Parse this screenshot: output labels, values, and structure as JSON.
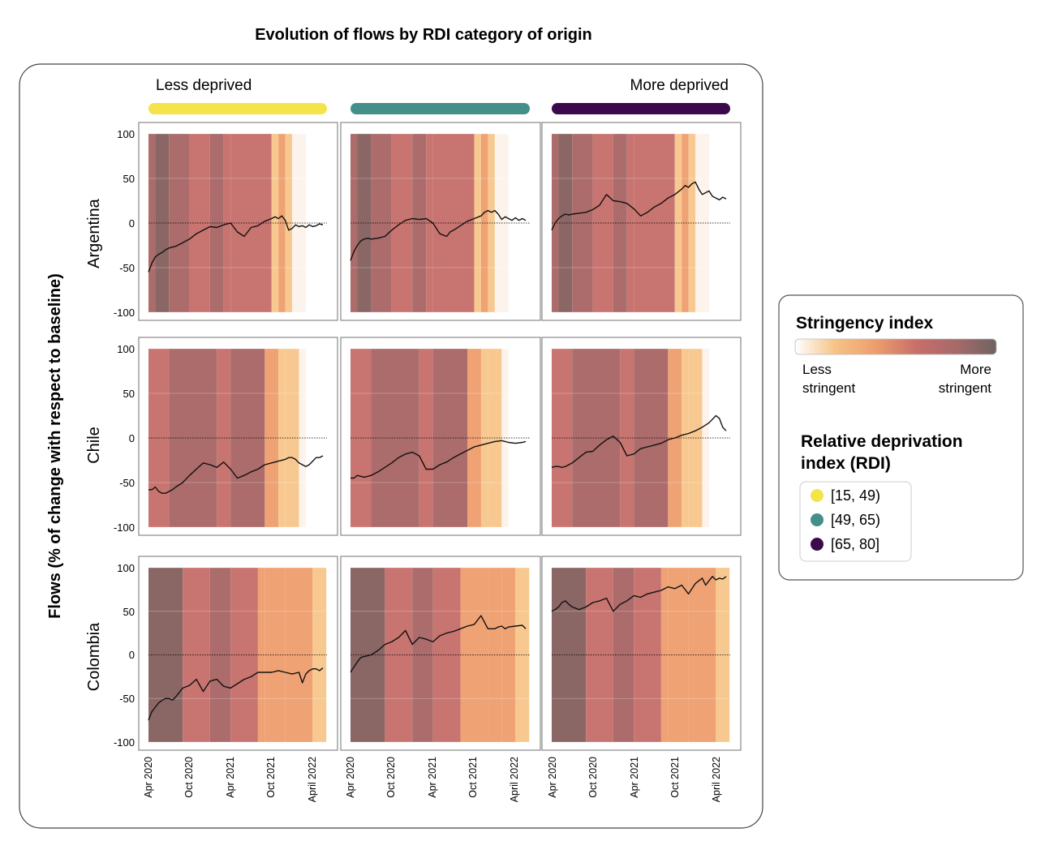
{
  "title": "Evolution of flows by RDI category of origin",
  "y_axis_label": "Flows (% of change with respect to baseline)",
  "column_headers": {
    "left": "Less deprived",
    "right": "More deprived"
  },
  "column_colors": [
    "#f5e34a",
    "#458f8b",
    "#3a0a4c"
  ],
  "row_labels": [
    "Argentina",
    "Chile",
    "Colombia"
  ],
  "y_ticks": [
    "100",
    "50",
    "0",
    "-50",
    "-100"
  ],
  "x_ticks": [
    "Apr 2020",
    "Oct 2020",
    "Apr 2021",
    "Oct 2021",
    "April 2022"
  ],
  "legend": {
    "stringency_title": "Stringency index",
    "stringency_low": [
      "Less",
      "stringent"
    ],
    "stringency_high": [
      "More",
      "stringent"
    ],
    "gradient_colors": [
      "#ffffff",
      "#f6c387",
      "#ed9e6d",
      "#c86f6a",
      "#a66a69",
      "#6e6462"
    ],
    "rdi_title_lines": [
      "Relative deprivation",
      "index (RDI)"
    ],
    "rdi_items": [
      {
        "label": "[15, 49)",
        "color": "#f5e34a"
      },
      {
        "label": "[49, 65)",
        "color": "#458f8b"
      },
      {
        "label": "[65, 80]",
        "color": "#3a0a4c"
      }
    ]
  },
  "chart_data": {
    "type": "line",
    "x_unit": "months since Apr 2020",
    "ylim": [
      -100,
      100
    ],
    "baseline": 0,
    "panels": [
      {
        "country": "Argentina",
        "rdi": "[15, 49)",
        "bands": [
          [
            0,
            1,
            4
          ],
          [
            1,
            3,
            5
          ],
          [
            3,
            6,
            4
          ],
          [
            6,
            9,
            3
          ],
          [
            9,
            11,
            4
          ],
          [
            11,
            12,
            3
          ],
          [
            12,
            18,
            3
          ],
          [
            18,
            19,
            1
          ],
          [
            19,
            20,
            2
          ],
          [
            20,
            21,
            1
          ],
          [
            21,
            23,
            0
          ]
        ],
        "x": [
          0,
          0.5,
          1,
          1.5,
          2,
          2.5,
          3,
          3.5,
          4,
          5,
          6,
          7,
          8,
          9,
          10,
          11,
          12,
          12.5,
          13,
          14,
          15,
          16,
          17,
          18,
          18.5,
          19,
          19.5,
          20,
          20.5,
          21,
          21.5,
          22,
          22.5,
          23,
          23.5,
          24,
          24.5,
          25,
          25.5
        ],
        "y": [
          -55,
          -45,
          -38,
          -35,
          -33,
          -30,
          -28,
          -27,
          -26,
          -22,
          -18,
          -12,
          -8,
          -4,
          -5,
          -2,
          0,
          -5,
          -10,
          -15,
          -5,
          -3,
          2,
          5,
          7,
          5,
          8,
          3,
          -8,
          -6,
          -2,
          -4,
          -3,
          -5,
          -2,
          -4,
          -3,
          -1,
          -2
        ]
      },
      {
        "country": "Argentina",
        "rdi": "[49, 65)",
        "bands": [
          [
            0,
            1,
            4
          ],
          [
            1,
            3,
            5
          ],
          [
            3,
            6,
            4
          ],
          [
            6,
            9,
            3
          ],
          [
            9,
            11,
            4
          ],
          [
            11,
            12,
            3
          ],
          [
            12,
            18,
            3
          ],
          [
            18,
            19,
            1
          ],
          [
            19,
            20,
            2
          ],
          [
            20,
            21,
            1
          ],
          [
            21,
            23,
            0
          ]
        ],
        "x": [
          0,
          0.5,
          1,
          1.5,
          2,
          2.5,
          3,
          4,
          5,
          6,
          7,
          8,
          9,
          10,
          11,
          12,
          13,
          14,
          14.5,
          15,
          16,
          17,
          18,
          19,
          19.5,
          20,
          20.5,
          21,
          21.5,
          22,
          22.5,
          23,
          23.5,
          24,
          24.5,
          25,
          25.5
        ],
        "y": [
          -42,
          -32,
          -25,
          -20,
          -18,
          -17,
          -18,
          -17,
          -15,
          -8,
          -2,
          3,
          5,
          4,
          5,
          0,
          -12,
          -15,
          -10,
          -8,
          -3,
          2,
          5,
          8,
          12,
          14,
          12,
          14,
          10,
          4,
          7,
          5,
          3,
          6,
          3,
          5,
          3
        ]
      },
      {
        "country": "Argentina",
        "rdi": "[65, 80]",
        "bands": [
          [
            0,
            1,
            4
          ],
          [
            1,
            3,
            5
          ],
          [
            3,
            6,
            4
          ],
          [
            6,
            9,
            3
          ],
          [
            9,
            11,
            4
          ],
          [
            11,
            12,
            3
          ],
          [
            12,
            18,
            3
          ],
          [
            18,
            19,
            1
          ],
          [
            19,
            20,
            2
          ],
          [
            20,
            21,
            1
          ],
          [
            21,
            23,
            0
          ]
        ],
        "x": [
          0,
          0.5,
          1,
          1.5,
          2,
          2.5,
          3,
          4,
          5,
          6,
          7,
          8,
          9,
          10,
          11,
          12,
          13,
          14,
          15,
          16,
          17,
          18,
          19,
          19.5,
          20,
          20.5,
          21,
          21.5,
          22,
          22.5,
          23,
          23.5,
          24,
          24.5,
          25,
          25.5
        ],
        "y": [
          -8,
          0,
          5,
          8,
          10,
          9,
          10,
          11,
          12,
          15,
          20,
          32,
          25,
          24,
          22,
          16,
          8,
          12,
          18,
          22,
          28,
          32,
          38,
          42,
          40,
          44,
          46,
          38,
          32,
          34,
          36,
          30,
          28,
          26,
          29,
          27
        ]
      },
      {
        "country": "Chile",
        "rdi": "[15, 49)",
        "bands": [
          [
            0,
            3,
            3
          ],
          [
            3,
            10,
            4
          ],
          [
            10,
            12,
            3
          ],
          [
            12,
            17,
            4
          ],
          [
            17,
            19,
            2
          ],
          [
            19,
            20,
            1
          ],
          [
            20,
            22,
            1
          ],
          [
            22,
            23,
            0
          ]
        ],
        "x": [
          0,
          0.5,
          1,
          1.5,
          2,
          2.5,
          3,
          3.5,
          4,
          5,
          6,
          7,
          8,
          9,
          10,
          11,
          12,
          13,
          14,
          14.5,
          15,
          16,
          17,
          18,
          19,
          20,
          20.5,
          21,
          21.5,
          22,
          22.5,
          23,
          23.5,
          24,
          24.5,
          25,
          25.5
        ],
        "y": [
          -58,
          -58,
          -55,
          -60,
          -62,
          -62,
          -60,
          -58,
          -55,
          -50,
          -42,
          -35,
          -28,
          -30,
          -33,
          -27,
          -35,
          -45,
          -42,
          -40,
          -38,
          -35,
          -30,
          -28,
          -26,
          -24,
          -22,
          -22,
          -24,
          -28,
          -30,
          -32,
          -30,
          -26,
          -22,
          -22,
          -20
        ]
      },
      {
        "country": "Chile",
        "rdi": "[49, 65)",
        "bands": [
          [
            0,
            3,
            3
          ],
          [
            3,
            10,
            4
          ],
          [
            10,
            12,
            3
          ],
          [
            12,
            17,
            4
          ],
          [
            17,
            19,
            2
          ],
          [
            19,
            20,
            1
          ],
          [
            20,
            22,
            1
          ],
          [
            22,
            23,
            0
          ]
        ],
        "x": [
          0,
          0.5,
          1,
          1.5,
          2,
          3,
          4,
          5,
          6,
          7,
          8,
          9,
          10,
          11,
          12,
          13,
          14,
          15,
          16,
          17,
          18,
          19,
          20,
          21,
          22,
          23,
          24,
          25,
          25.5
        ],
        "y": [
          -45,
          -45,
          -42,
          -43,
          -44,
          -42,
          -38,
          -33,
          -28,
          -22,
          -18,
          -16,
          -20,
          -35,
          -35,
          -30,
          -27,
          -22,
          -18,
          -14,
          -10,
          -8,
          -6,
          -4,
          -3,
          -5,
          -6,
          -5,
          -4
        ]
      },
      {
        "country": "Chile",
        "rdi": "[65, 80]",
        "bands": [
          [
            0,
            3,
            3
          ],
          [
            3,
            10,
            4
          ],
          [
            10,
            12,
            3
          ],
          [
            12,
            17,
            4
          ],
          [
            17,
            19,
            2
          ],
          [
            19,
            20,
            1
          ],
          [
            20,
            22,
            1
          ],
          [
            22,
            23,
            0
          ]
        ],
        "x": [
          0,
          0.5,
          1,
          1.5,
          2,
          3,
          4,
          5,
          6,
          7,
          8,
          9,
          10,
          11,
          12,
          13,
          14,
          15,
          16,
          17,
          18,
          19,
          20,
          21,
          22,
          23,
          24,
          24.5,
          25,
          25.5
        ],
        "y": [
          -33,
          -32,
          -32,
          -33,
          -32,
          -28,
          -22,
          -16,
          -15,
          -8,
          -2,
          2,
          -5,
          -20,
          -18,
          -12,
          -10,
          -8,
          -6,
          -2,
          0,
          3,
          5,
          8,
          12,
          17,
          25,
          22,
          12,
          8
        ]
      },
      {
        "country": "Colombia",
        "rdi": "[15, 49)",
        "bands": [
          [
            0,
            5,
            5
          ],
          [
            5,
            9,
            3
          ],
          [
            9,
            12,
            4
          ],
          [
            12,
            16,
            3
          ],
          [
            16,
            17,
            2
          ],
          [
            17,
            20,
            2
          ],
          [
            20,
            22,
            2
          ],
          [
            22,
            24,
            2
          ],
          [
            24,
            26,
            1
          ]
        ],
        "x": [
          0,
          0.5,
          1,
          1.5,
          2,
          2.5,
          3,
          3.5,
          4,
          5,
          6,
          7,
          8,
          9,
          10,
          11,
          12,
          13,
          14,
          15,
          16,
          17,
          18,
          19,
          20,
          21,
          22,
          22.5,
          23,
          23.5,
          24,
          24.5,
          25,
          25.5
        ],
        "y": [
          -75,
          -65,
          -60,
          -55,
          -52,
          -50,
          -50,
          -52,
          -48,
          -38,
          -35,
          -28,
          -42,
          -30,
          -28,
          -36,
          -38,
          -33,
          -28,
          -25,
          -20,
          -20,
          -20,
          -18,
          -20,
          -22,
          -20,
          -32,
          -22,
          -18,
          -16,
          -16,
          -18,
          -15
        ]
      },
      {
        "country": "Colombia",
        "rdi": "[49, 65)",
        "bands": [
          [
            0,
            5,
            5
          ],
          [
            5,
            9,
            3
          ],
          [
            9,
            12,
            4
          ],
          [
            12,
            16,
            3
          ],
          [
            16,
            17,
            2
          ],
          [
            17,
            20,
            2
          ],
          [
            20,
            22,
            2
          ],
          [
            22,
            24,
            2
          ],
          [
            24,
            26,
            1
          ]
        ],
        "x": [
          0,
          0.5,
          1,
          1.5,
          2,
          3,
          4,
          5,
          6,
          7,
          8,
          9,
          10,
          11,
          12,
          13,
          14,
          15,
          16,
          17,
          18,
          19,
          20,
          21,
          21.5,
          22,
          22.5,
          23,
          24,
          25,
          25.5
        ],
        "y": [
          -20,
          -14,
          -8,
          -3,
          -2,
          0,
          5,
          12,
          15,
          20,
          28,
          12,
          20,
          18,
          15,
          22,
          25,
          27,
          30,
          33,
          35,
          45,
          30,
          30,
          32,
          33,
          30,
          32,
          33,
          34,
          30
        ]
      },
      {
        "country": "Colombia",
        "rdi": "[65, 80]",
        "bands": [
          [
            0,
            5,
            5
          ],
          [
            5,
            9,
            3
          ],
          [
            9,
            12,
            4
          ],
          [
            12,
            16,
            3
          ],
          [
            16,
            17,
            2
          ],
          [
            17,
            20,
            2
          ],
          [
            20,
            22,
            2
          ],
          [
            22,
            24,
            2
          ],
          [
            24,
            26,
            1
          ]
        ],
        "x": [
          0,
          0.5,
          1,
          1.5,
          2,
          2.5,
          3,
          4,
          5,
          6,
          7,
          8,
          9,
          10,
          11,
          12,
          13,
          14,
          15,
          16,
          17,
          18,
          19,
          20,
          21,
          22,
          22.5,
          23,
          23.5,
          24,
          24.5,
          25,
          25.5
        ],
        "y": [
          50,
          52,
          55,
          60,
          62,
          58,
          55,
          52,
          55,
          60,
          62,
          65,
          50,
          58,
          62,
          68,
          66,
          70,
          72,
          74,
          78,
          76,
          80,
          70,
          82,
          88,
          80,
          85,
          90,
          86,
          88,
          87,
          90
        ]
      }
    ]
  }
}
